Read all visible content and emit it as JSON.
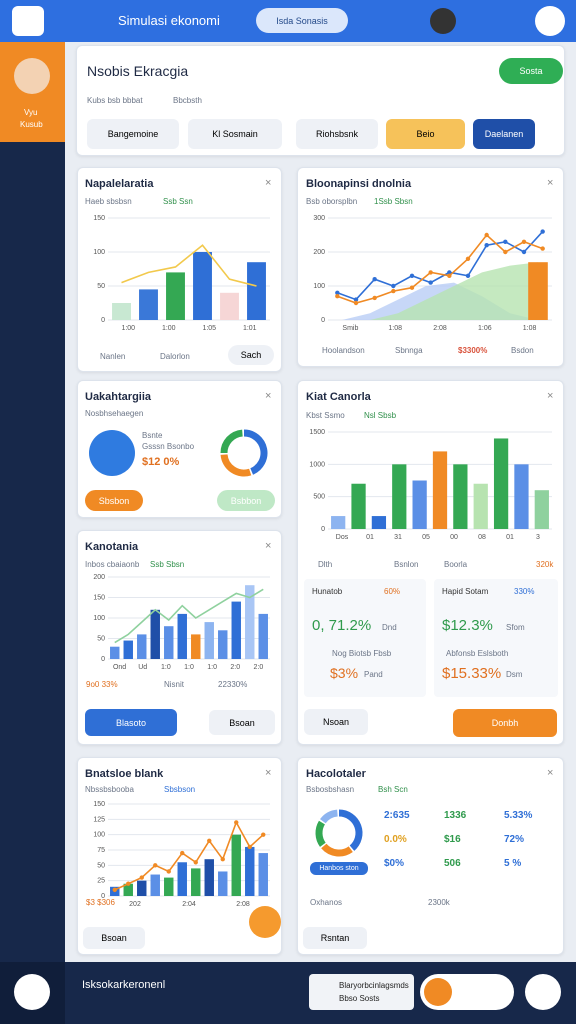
{
  "topbar": {
    "app_name": "Simulasi ekonomi",
    "search": "Isda Sonasis"
  },
  "sidebar": {
    "user_label_1": "Vyu",
    "user_label_2": "Kusub"
  },
  "header": {
    "title": "Nsobis Ekracgia",
    "subtitle_1": "Kubs bsb bbbat",
    "subtitle_2": "Bbcbsth",
    "action": "Sosta",
    "filters": [
      "Bangemoine",
      "Kl Sosmain",
      "Riohsbsnk",
      "Beio",
      "Daelanen"
    ]
  },
  "cards": [
    {
      "title": "Napalelaratia",
      "subtitle_1": "Haeb sbsbsn",
      "subtitle_2": "Ssb Ssn",
      "legend": [
        "Nanlen",
        "Dalorlon"
      ],
      "button": "Sach",
      "chart": {
        "ylim": [
          0,
          150
        ],
        "yticks": [
          0,
          50,
          100,
          150
        ],
        "xlabels": [
          "1:00",
          "1:00",
          "1:05",
          "1:01"
        ],
        "bars": {
          "values": [
            25,
            45,
            70,
            100,
            40,
            85
          ],
          "colors": [
            "#c8e8d2",
            "#3a78d8",
            "#34a853",
            "#2f6fd6",
            "#f6d6d6",
            "#2f6fd6"
          ]
        },
        "lines": [
          {
            "color": "#f2c94c",
            "values": [
              55,
              70,
              78,
              110,
              60,
              50
            ]
          }
        ]
      }
    },
    {
      "title": "Bloonapinsi dnolnia",
      "subtitle_1": "Bsb oborsplbn",
      "subtitle_2": "1Ssb Sbsn",
      "legend": [
        "Hoolandson",
        "Sbnnga",
        "$3300%",
        "Bsdon"
      ],
      "chart": {
        "ylim": [
          0,
          300
        ],
        "yticks": [
          0,
          100,
          200,
          300
        ],
        "xlabels": [
          "Smib",
          "1:08",
          "2:08",
          "1:06",
          "1:08"
        ],
        "bars": {
          "values": [
            null,
            null,
            null,
            null,
            null,
            null,
            null,
            170
          ],
          "colors": [
            null,
            null,
            null,
            null,
            null,
            null,
            null,
            "#f08a24"
          ]
        },
        "lines": [
          {
            "color": "#b9cdf5",
            "area": true,
            "values": [
              0,
              20,
              60,
              100,
              110,
              70,
              20,
              0
            ]
          },
          {
            "color": "#b7e3b0",
            "area": true,
            "values": [
              0,
              0,
              20,
              60,
              100,
              140,
              160,
              170
            ]
          },
          {
            "color": "#2f6fd6",
            "dots": true,
            "values": [
              80,
              60,
              120,
              100,
              130,
              110,
              140,
              130,
              220,
              230,
              200,
              260
            ]
          },
          {
            "color": "#f08a24",
            "dots": true,
            "values": [
              70,
              50,
              65,
              85,
              95,
              140,
              130,
              180,
              250,
              200,
              230,
              210
            ]
          }
        ]
      }
    },
    {
      "title": "Uakahtargiia",
      "subtitle_1": "Nosbhsehaegen",
      "pie_label_1": "Bsnte",
      "pie_label_2": "Gsssn Bsonbo",
      "pie_value": "$12 0%",
      "buttons": [
        "Sbsbon",
        "Bsbbon"
      ],
      "donut": {
        "values": [
          45,
          30,
          25
        ],
        "colors": [
          "#2f6fd6",
          "#f08a24",
          "#34a853"
        ]
      }
    },
    {
      "title": "Kiat Canorla",
      "subtitle_1": "Kbst Ssmo",
      "subtitle_2": "Nsl Sbsb",
      "legend": [
        "Dlth",
        "Bsnlon",
        "Boorla",
        "320k"
      ],
      "chart": {
        "ylim": [
          0,
          1500
        ],
        "yticks": [
          0,
          500,
          1000,
          1500
        ],
        "xlabels": [
          "Dos",
          "01",
          "31",
          "05",
          "00",
          "08",
          "01",
          "3"
        ],
        "bars": {
          "values": [
            200,
            700,
            200,
            1000,
            750,
            1200,
            1000,
            700,
            1400,
            1000,
            600
          ],
          "colors": [
            "#8db4f0",
            "#34a853",
            "#2f6fd6",
            "#34a853",
            "#5b8fe6",
            "#f08a24",
            "#34a853",
            "#b7e3b0",
            "#34a853",
            "#5b8fe6",
            "#8fd19e"
          ]
        }
      },
      "stats": [
        {
          "label": "Hunatob",
          "value": "60%",
          "big": "0, 71.2%",
          "small": "Dnd",
          "sub": "Nog Biotsb Fbsb",
          "big2": "$3%",
          "small2": "Pand"
        },
        {
          "label": "Hapid Sotam",
          "value": "330%",
          "big": "$12.3%",
          "small": "Sfom",
          "sub": "Abfonsb Eslsboth",
          "big2": "$15.33%",
          "small2": "Dsm"
        }
      ],
      "buttons": [
        "Nsoan",
        "Donbh"
      ]
    },
    {
      "title": "Kanotania",
      "subtitle_1": "Inbos cbaiaonb",
      "subtitle_2": "Ssb Sbsn",
      "footer": [
        "9o0 33%",
        "Nisnit",
        "22330%"
      ],
      "buttons": [
        "Blasoto",
        "Bsoan"
      ],
      "chart": {
        "ylim": [
          0,
          200
        ],
        "yticks": [
          0,
          50,
          100,
          150,
          200
        ],
        "xlabels": [
          "Ond",
          "Ud",
          "1:0",
          "1:0",
          "1:0",
          "2:0",
          "2:0"
        ],
        "bars": {
          "values": [
            30,
            45,
            60,
            120,
            80,
            110,
            60,
            90,
            70,
            140,
            180,
            110
          ],
          "colors": [
            "#5b8fe6",
            "#2f6fd6",
            "#5b8fe6",
            "#1f4fa8",
            "#5b8fe6",
            "#2f6fd6",
            "#f08a24",
            "#8db4f0",
            "#5b8fe6",
            "#2f6fd6",
            "#a9c6f5",
            "#5b8fe6"
          ]
        },
        "lines": [
          {
            "color": "#8fd19e",
            "values": [
              40,
              60,
              90,
              120,
              95,
              130,
              100,
              120,
              140,
              160,
              150,
              170
            ]
          }
        ]
      }
    },
    {
      "title": "Bnatsloe blank",
      "subtitle_1": "Nbssbsbooba",
      "subtitle_2": "Sbsbson",
      "value_note": "$3 $306",
      "button": "Bsoan",
      "chart": {
        "ylim": [
          0,
          150
        ],
        "yticks": [
          0,
          25,
          50,
          75,
          100,
          125,
          150
        ],
        "xlabels": [
          "202",
          "2:04",
          "2:08"
        ],
        "bars": {
          "values": [
            15,
            20,
            25,
            35,
            30,
            55,
            45,
            60,
            40,
            100,
            80,
            70
          ],
          "colors": [
            "#2f6fd6",
            "#34a853",
            "#1f4fa8",
            "#5b8fe6",
            "#34a853",
            "#2f6fd6",
            "#34a853",
            "#1f4fa8",
            "#5b8fe6",
            "#34a853",
            "#2f6fd6",
            "#5b8fe6"
          ]
        },
        "lines": [
          {
            "color": "#f08a24",
            "dots": true,
            "values": [
              10,
              20,
              30,
              50,
              40,
              70,
              55,
              90,
              60,
              120,
              80,
              100
            ]
          }
        ]
      }
    },
    {
      "title": "Hacolotaler",
      "subtitle_1": "Bsbosbshasn",
      "subtitle_2": "Bsh Scn",
      "pill": "Hanbos ston",
      "foot_left": "Oxhanos",
      "foot_right": "2300k",
      "button": "Rsntan",
      "donut": {
        "values": [
          40,
          25,
          20,
          15
        ],
        "colors": [
          "#2f6fd6",
          "#f08a24",
          "#34a853",
          "#8db4f0"
        ]
      },
      "table": [
        [
          "2:635",
          "1336",
          "5.33%"
        ],
        [
          "0.0%",
          "$16",
          "72%"
        ],
        [
          "$0%",
          "506",
          "5 %"
        ]
      ]
    }
  ],
  "footer": {
    "title": "Isksokarkeronenl",
    "box_title": "Blaryorbcinlagsmds",
    "box_sub": "Bbso Sosts"
  }
}
